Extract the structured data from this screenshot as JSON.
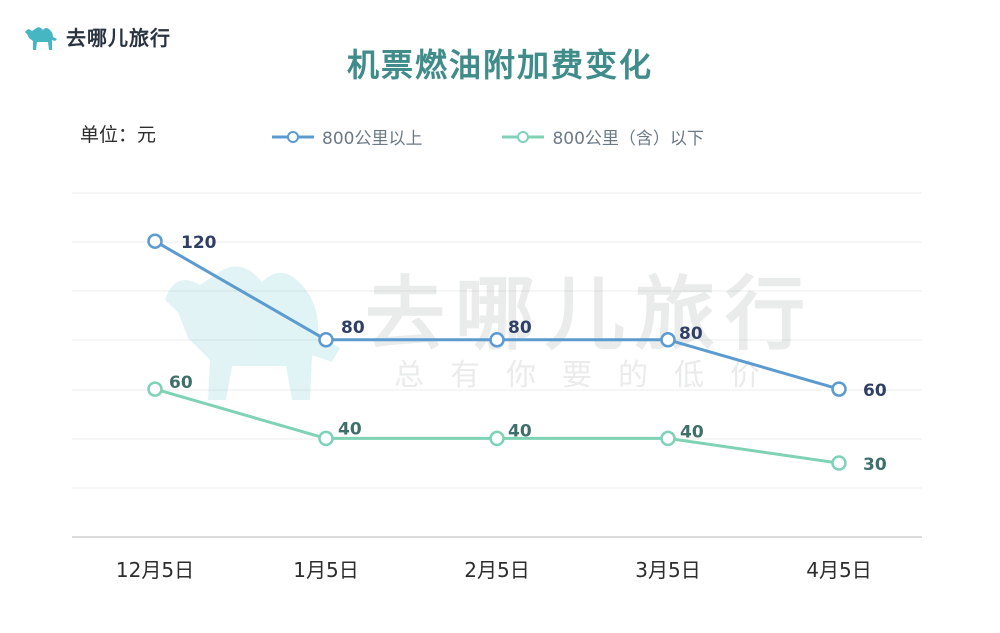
{
  "brand": {
    "name": "去哪儿旅行",
    "icon": "camel-icon"
  },
  "watermark": {
    "text": "去哪儿旅行",
    "subtext": "总有你要的低价"
  },
  "header": {
    "unit_label": "单位：元"
  },
  "colors": {
    "series_above": "#5b9bd0",
    "series_below": "#7fd3b4",
    "title": "#3f8c8a",
    "label_dark": "#2f3f66",
    "label_green": "#3e6f6b"
  },
  "chart_data": {
    "type": "line",
    "title": "机票燃油附加费变化",
    "xlabel": "",
    "ylabel": "",
    "categories": [
      "12月5日",
      "1月5日",
      "2月5日",
      "3月5日",
      "4月5日"
    ],
    "series": [
      {
        "name": "800公里以上",
        "values": [
          120,
          80,
          80,
          80,
          60
        ]
      },
      {
        "name": "800公里（含）以下",
        "values": [
          60,
          40,
          40,
          40,
          30
        ]
      }
    ],
    "legend_position": "top",
    "grid": true
  }
}
